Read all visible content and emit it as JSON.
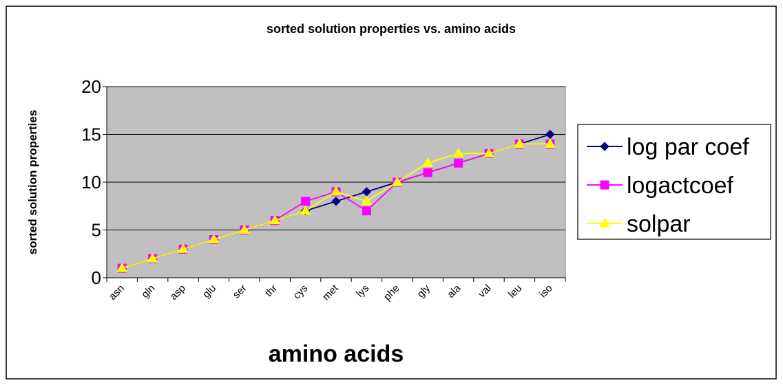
{
  "chart_data": {
    "type": "line",
    "title": "sorted solution properties vs. amino acids",
    "xlabel": "amino acids",
    "ylabel": "sorted solution properties",
    "categories": [
      "asn",
      "gln",
      "asp",
      "glu",
      "ser",
      "thr",
      "cys",
      "met",
      "lys",
      "phe",
      "gly",
      "ala",
      "val",
      "leu",
      "iso"
    ],
    "ylim": [
      0,
      20
    ],
    "yticks": [
      "0",
      "5",
      "10",
      "15",
      "20"
    ],
    "grid": true,
    "legend_position": "right",
    "plot_background": "#c0c0c0",
    "series": [
      {
        "name": "log par coef",
        "color": "#000080",
        "marker": "diamond",
        "values": [
          1,
          2,
          3,
          4,
          5,
          6,
          7,
          8,
          9,
          10,
          11,
          12,
          13,
          14,
          15
        ]
      },
      {
        "name": "logactcoef",
        "color": "#ff00ff",
        "marker": "square",
        "values": [
          1,
          2,
          3,
          4,
          5,
          6,
          8,
          9,
          7,
          10,
          11,
          12,
          13,
          14,
          14
        ]
      },
      {
        "name": "solpar",
        "color": "#ffff00",
        "marker": "triangle",
        "values": [
          1,
          2,
          3,
          4,
          5,
          6,
          7,
          9,
          8,
          10,
          12,
          13,
          13,
          14,
          14
        ]
      }
    ]
  }
}
